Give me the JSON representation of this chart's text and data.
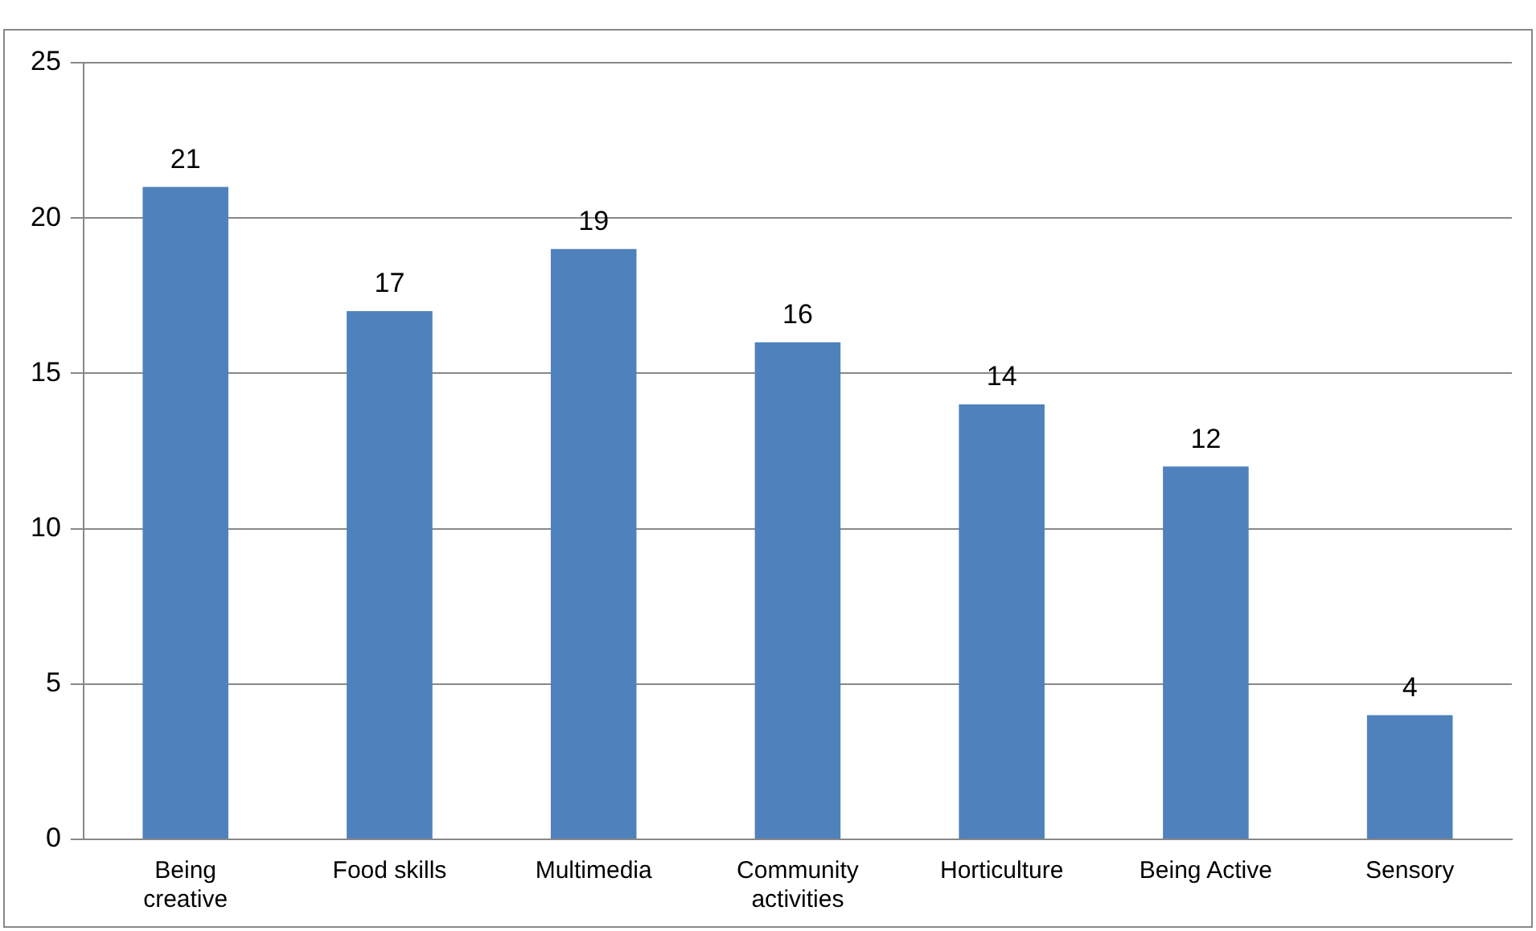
{
  "chart_data": {
    "type": "bar",
    "categories": [
      "Being creative",
      "Food skills",
      "Multimedia",
      "Community activities",
      "Horticulture",
      "Being Active",
      "Sensory"
    ],
    "values": [
      21,
      17,
      19,
      16,
      14,
      12,
      4
    ],
    "color": "#4f81bd",
    "ylim": [
      0,
      25
    ],
    "yticks": [
      0,
      5,
      10,
      15,
      20,
      25
    ],
    "grid": "y",
    "data_labels": true,
    "legend": false
  }
}
